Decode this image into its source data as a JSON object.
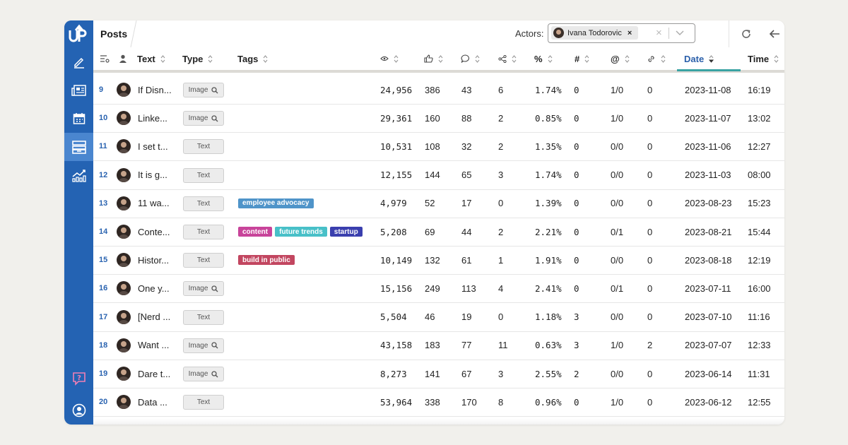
{
  "app": {
    "title": "Posts"
  },
  "actors": {
    "label": "Actors:",
    "selected": "Ivana Todorovic",
    "remove_glyph": "×",
    "clear_glyph": "×"
  },
  "toolbar": {
    "refresh_icon": "refresh-icon",
    "back_icon": "arrow-left-icon",
    "forward_icon": "arrow-right-icon"
  },
  "sidebar": {
    "items": [
      {
        "icon": "pencil-icon"
      },
      {
        "icon": "newspaper-icon"
      },
      {
        "icon": "calendar-icon"
      },
      {
        "icon": "inbox-icon",
        "active": true
      },
      {
        "icon": "chart-icon"
      },
      {
        "icon": "help-icon"
      },
      {
        "icon": "user-circle-icon"
      }
    ]
  },
  "columns": {
    "text": "Text",
    "type": "Type",
    "tags": "Tags",
    "percent": "%",
    "hash": "#",
    "at": "@",
    "date": "Date",
    "time": "Time"
  },
  "colors": {
    "sidebar": "#2463b3",
    "sidebar_active": "#4a86cf",
    "accent_blue": "#2a63b0",
    "date_underline": "#3aa3a3"
  },
  "rows": [
    {
      "n": "9",
      "text": "If Disn...",
      "type": "Image",
      "tags": [],
      "views": "24,956",
      "likes": "386",
      "comments": "43",
      "shares": "6",
      "pct": "1.74%",
      "hash": "0",
      "at": "1/0",
      "links": "0",
      "date": "2023-11-08",
      "time": "16:19"
    },
    {
      "n": "10",
      "text": "Linke...",
      "type": "Image",
      "tags": [],
      "views": "29,361",
      "likes": "160",
      "comments": "88",
      "shares": "2",
      "pct": "0.85%",
      "hash": "0",
      "at": "1/0",
      "links": "0",
      "date": "2023-11-07",
      "time": "13:02"
    },
    {
      "n": "11",
      "text": "I set t...",
      "type": "Text",
      "tags": [],
      "views": "10,531",
      "likes": "108",
      "comments": "32",
      "shares": "2",
      "pct": "1.35%",
      "hash": "0",
      "at": "0/0",
      "links": "0",
      "date": "2023-11-06",
      "time": "12:27"
    },
    {
      "n": "12",
      "text": "It is g...",
      "type": "Text",
      "tags": [],
      "views": "12,155",
      "likes": "144",
      "comments": "65",
      "shares": "3",
      "pct": "1.74%",
      "hash": "0",
      "at": "0/0",
      "links": "0",
      "date": "2023-11-03",
      "time": "08:00"
    },
    {
      "n": "13",
      "text": "11 wa...",
      "type": "Text",
      "tags": [
        {
          "label": "employee advocacy",
          "color": "#4f94c9"
        }
      ],
      "views": "4,979",
      "likes": "52",
      "comments": "17",
      "shares": "0",
      "pct": "1.39%",
      "hash": "0",
      "at": "0/0",
      "links": "0",
      "date": "2023-08-23",
      "time": "15:23"
    },
    {
      "n": "14",
      "text": "Conte...",
      "type": "Text",
      "tags": [
        {
          "label": "content",
          "color": "#c8449a"
        },
        {
          "label": "future trends",
          "color": "#48c0c8"
        },
        {
          "label": "startup",
          "color": "#3a3fae"
        }
      ],
      "views": "5,208",
      "likes": "69",
      "comments": "44",
      "shares": "2",
      "pct": "2.21%",
      "hash": "0",
      "at": "0/1",
      "links": "0",
      "date": "2023-08-21",
      "time": "15:44"
    },
    {
      "n": "15",
      "text": "Histor...",
      "type": "Text",
      "tags": [
        {
          "label": "build in public",
          "color": "#c24660"
        }
      ],
      "views": "10,149",
      "likes": "132",
      "comments": "61",
      "shares": "1",
      "pct": "1.91%",
      "hash": "0",
      "at": "0/0",
      "links": "0",
      "date": "2023-08-18",
      "time": "12:19"
    },
    {
      "n": "16",
      "text": "One y...",
      "type": "Image",
      "tags": [],
      "views": "15,156",
      "likes": "249",
      "comments": "113",
      "shares": "4",
      "pct": "2.41%",
      "hash": "0",
      "at": "0/1",
      "links": "0",
      "date": "2023-07-11",
      "time": "16:00"
    },
    {
      "n": "17",
      "text": "[Nerd ...",
      "type": "Text",
      "tags": [],
      "views": "5,504",
      "likes": "46",
      "comments": "19",
      "shares": "0",
      "pct": "1.18%",
      "hash": "3",
      "at": "0/0",
      "links": "0",
      "date": "2023-07-10",
      "time": "11:16"
    },
    {
      "n": "18",
      "text": "Want ...",
      "type": "Image",
      "tags": [],
      "views": "43,158",
      "likes": "183",
      "comments": "77",
      "shares": "11",
      "pct": "0.63%",
      "hash": "3",
      "at": "1/0",
      "links": "2",
      "date": "2023-07-07",
      "time": "12:33"
    },
    {
      "n": "19",
      "text": "Dare t...",
      "type": "Image",
      "tags": [],
      "views": "8,273",
      "likes": "141",
      "comments": "67",
      "shares": "3",
      "pct": "2.55%",
      "hash": "2",
      "at": "0/0",
      "links": "0",
      "date": "2023-06-14",
      "time": "11:31"
    },
    {
      "n": "20",
      "text": "Data ...",
      "type": "Text",
      "tags": [],
      "views": "53,964",
      "likes": "338",
      "comments": "170",
      "shares": "8",
      "pct": "0.96%",
      "hash": "0",
      "at": "1/0",
      "links": "0",
      "date": "2023-06-12",
      "time": "12:55"
    }
  ]
}
